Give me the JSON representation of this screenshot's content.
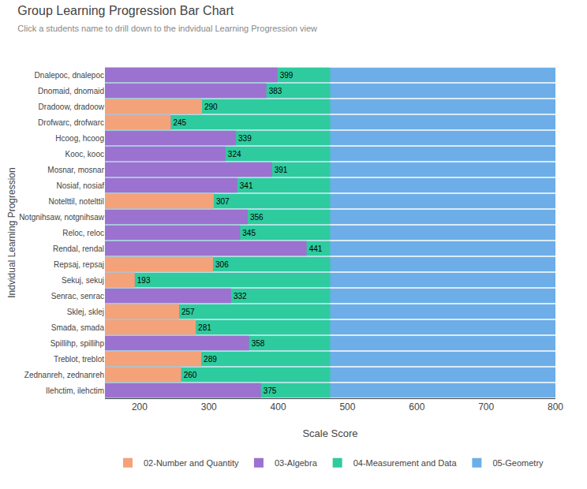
{
  "chart_data": {
    "type": "bar",
    "orientation": "horizontal",
    "title": "Group Learning Progression Bar Chart",
    "subtitle": "Click a students name to drill down to the indvidual Learning Progression view",
    "xlabel": "Scale Score",
    "ylabel": "Indvidual Learning Progression",
    "categories": [
      "Dnalepoc, dnalepoc",
      "Dnomaid, dnomaid",
      "Dradoow, dradoow",
      "Drofwarc, drofwarc",
      "Hcoog, hcoog",
      "Kooc, kooc",
      "Mosnar, mosnar",
      "Nosiaf, nosiaf",
      "Notelttil, notelttil",
      "Notgnihsaw, notgnihsaw",
      "Reloc, reloc",
      "Rendal, rendal",
      "Repsaj, repsaj",
      "Sekuj, sekuj",
      "Senrac, senrac",
      "Sklej, sklej",
      "Smada, smada",
      "Spillihp, spillihp",
      "Treblot, treblot",
      "Zednanreh, zednanreh",
      "Ilehctim, ilehctim"
    ],
    "series": [
      {
        "name": "02-Number and Quantity",
        "color": "#f4a27a",
        "values": [
          null,
          null,
          290,
          245,
          null,
          null,
          null,
          null,
          307,
          null,
          null,
          null,
          306,
          193,
          null,
          257,
          281,
          null,
          289,
          260,
          null
        ]
      },
      {
        "name": "03-Algebra",
        "color": "#9b72cf",
        "data_labels": true,
        "values": [
          399,
          383,
          290,
          245,
          339,
          324,
          391,
          341,
          307,
          356,
          345,
          441,
          306,
          193,
          332,
          257,
          281,
          358,
          289,
          260,
          375
        ]
      },
      {
        "name": "04-Measurement and Data",
        "color": "#2ecb9e",
        "values": [
          475,
          475,
          475,
          475,
          475,
          475,
          475,
          475,
          475,
          475,
          475,
          475,
          475,
          475,
          475,
          475,
          475,
          475,
          475,
          475,
          475
        ]
      },
      {
        "name": "05-Geometry",
        "color": "#6daee8",
        "values": [
          800,
          800,
          800,
          800,
          800,
          800,
          800,
          800,
          800,
          800,
          800,
          800,
          800,
          800,
          800,
          800,
          800,
          800,
          800,
          800,
          800
        ]
      }
    ],
    "xlim": [
      150,
      800
    ],
    "xticks": [
      200,
      300,
      400,
      500,
      600,
      700,
      800
    ],
    "grid": true,
    "legend": "bottom"
  }
}
